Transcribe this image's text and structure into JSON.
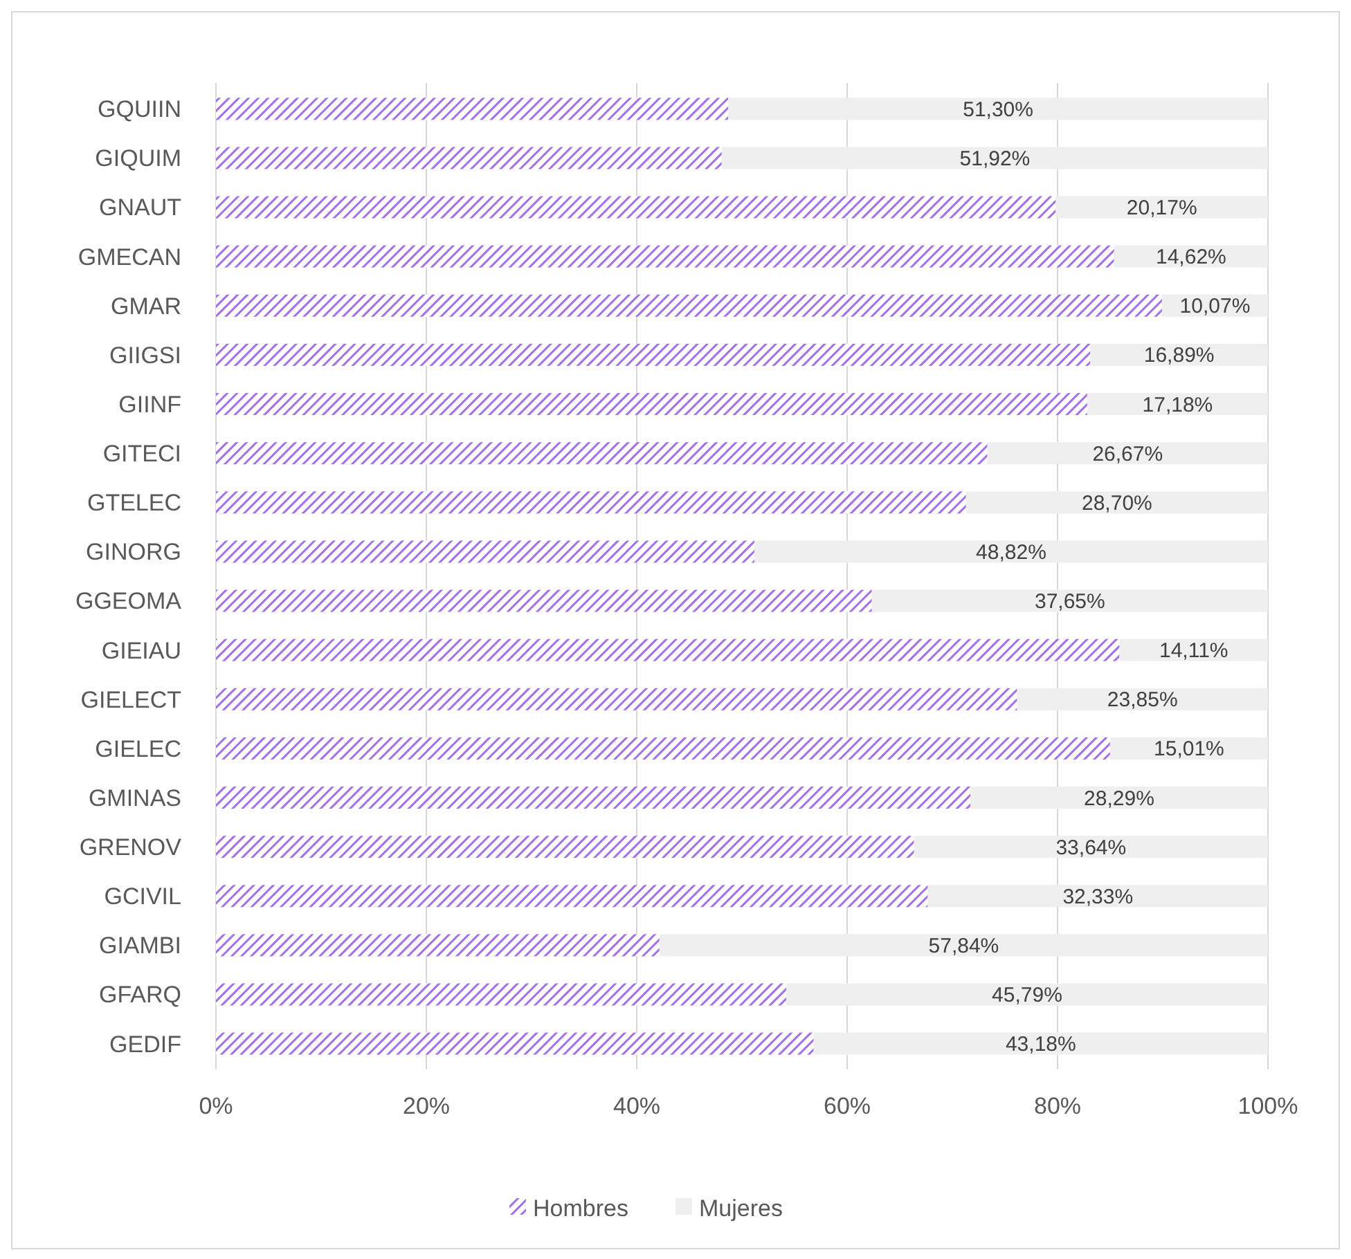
{
  "chart_data": {
    "type": "bar",
    "orientation": "horizontal",
    "stacked": true,
    "categories": [
      "GQUIIN",
      "GIQUIM",
      "GNAUT",
      "GMECAN",
      "GMAR",
      "GIIGSI",
      "GIINF",
      "GITECI",
      "GTELEC",
      "GINORG",
      "GGEOMA",
      "GIEIAU",
      "GIELECT",
      "GIELEC",
      "GMINAS",
      "GRENOV",
      "GCIVIL",
      "GIAMBI",
      "GFARQ",
      "GEDIF"
    ],
    "series": [
      {
        "name": "Hombres",
        "color": "#a46ef0",
        "values": [
          48.7,
          48.08,
          79.83,
          85.38,
          89.93,
          83.11,
          82.82,
          73.33,
          71.3,
          51.18,
          62.35,
          85.89,
          76.15,
          84.99,
          71.71,
          66.36,
          67.67,
          42.16,
          54.21,
          56.82
        ]
      },
      {
        "name": "Mujeres",
        "color": "#efefef",
        "values": [
          51.3,
          51.92,
          20.17,
          14.62,
          10.07,
          16.89,
          17.18,
          26.67,
          28.7,
          48.82,
          37.65,
          14.11,
          23.85,
          15.01,
          28.29,
          33.64,
          32.33,
          57.84,
          45.79,
          43.18
        ],
        "value_labels": [
          "51,30%",
          "51,92%",
          "20,17%",
          "14,62%",
          "10,07%",
          "16,89%",
          "17,18%",
          "26,67%",
          "28,70%",
          "48,82%",
          "37,65%",
          "14,11%",
          "23,85%",
          "15,01%",
          "28,29%",
          "33,64%",
          "32,33%",
          "57,84%",
          "45,79%",
          "43,18%"
        ]
      }
    ],
    "xlim": [
      0,
      100
    ],
    "xticks": [
      {
        "value": 0,
        "label": "0%"
      },
      {
        "value": 20,
        "label": "20%"
      },
      {
        "value": 40,
        "label": "40%"
      },
      {
        "value": 60,
        "label": "60%"
      },
      {
        "value": 80,
        "label": "80%"
      },
      {
        "value": 100,
        "label": "100%"
      }
    ],
    "grid": "x",
    "legend": "bottom"
  }
}
